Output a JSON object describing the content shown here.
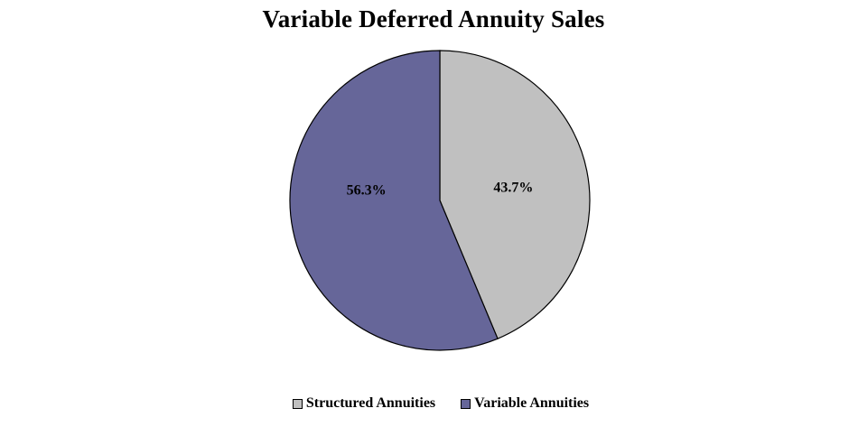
{
  "chart_data": {
    "type": "pie",
    "title": "Variable Deferred Annuity Sales",
    "slices": [
      {
        "name": "Structured Annuities",
        "value": 43.7,
        "label": "43.7%",
        "color": "#c0c0c0"
      },
      {
        "name": "Variable Annuities",
        "value": 56.3,
        "label": "56.3%",
        "color": "#666699"
      }
    ],
    "legend_position": "bottom",
    "start_angle": "12 o'clock",
    "direction": "clockwise"
  }
}
